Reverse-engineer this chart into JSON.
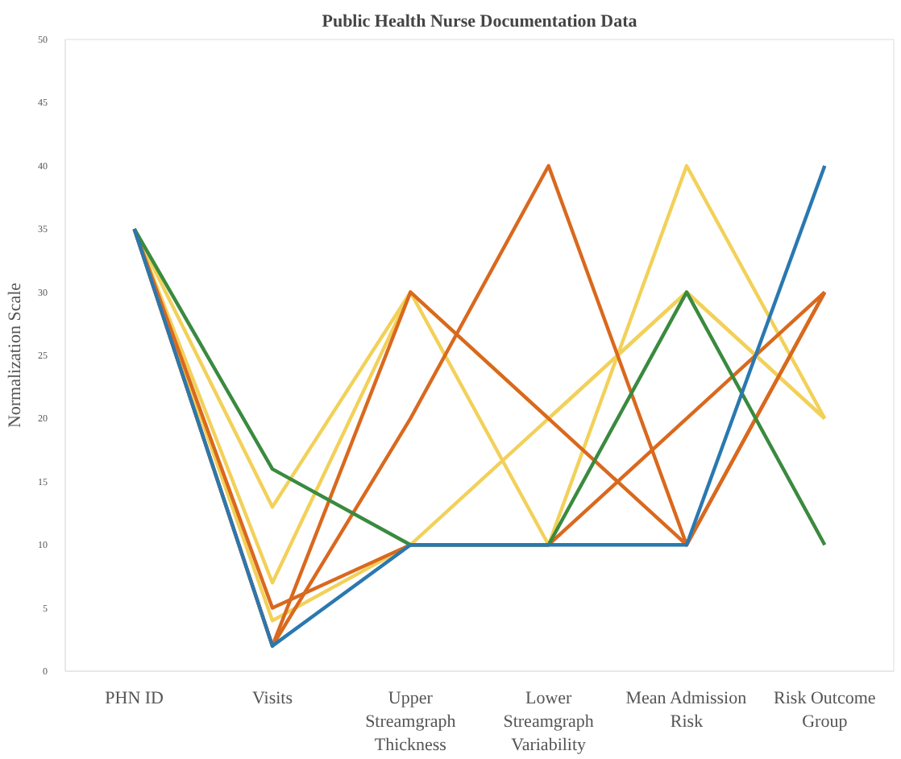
{
  "chart_data": {
    "type": "line",
    "title": "Public Health Nurse Documentation Data",
    "ylabel": "Normalization Scale",
    "categories": [
      "PHN ID",
      "Visits",
      "Upper\nStreamgraph\nThickness",
      "Lower\nStreamgraph\nVariability",
      "Mean Admission\nRisk",
      "Risk Outcome\nGroup"
    ],
    "ylim": [
      0,
      50
    ],
    "yticks": [
      0,
      5,
      10,
      15,
      20,
      25,
      30,
      35,
      40,
      45,
      50
    ],
    "grid": false,
    "marker": "none",
    "line_style": "solid",
    "series": [
      {
        "color": "#f2d15a",
        "values": [
          35,
          13,
          30,
          10,
          40,
          20
        ]
      },
      {
        "color": "#f2d15a",
        "values": [
          35,
          7,
          30,
          20,
          30,
          20
        ]
      },
      {
        "color": "#f2d15a",
        "values": [
          35,
          4,
          10,
          20,
          30,
          20
        ]
      },
      {
        "color": "#d9691e",
        "values": [
          35,
          2,
          20,
          40,
          10,
          30
        ]
      },
      {
        "color": "#d9691e",
        "values": [
          35,
          5,
          10,
          10,
          20,
          30
        ]
      },
      {
        "color": "#d9691e",
        "values": [
          35,
          2,
          30,
          20,
          10,
          30
        ]
      },
      {
        "color": "#3a8a3f",
        "values": [
          35,
          16,
          10,
          10,
          30,
          10
        ]
      },
      {
        "color": "#2a78b0",
        "values": [
          35,
          2,
          10,
          10,
          10,
          40
        ]
      }
    ]
  }
}
